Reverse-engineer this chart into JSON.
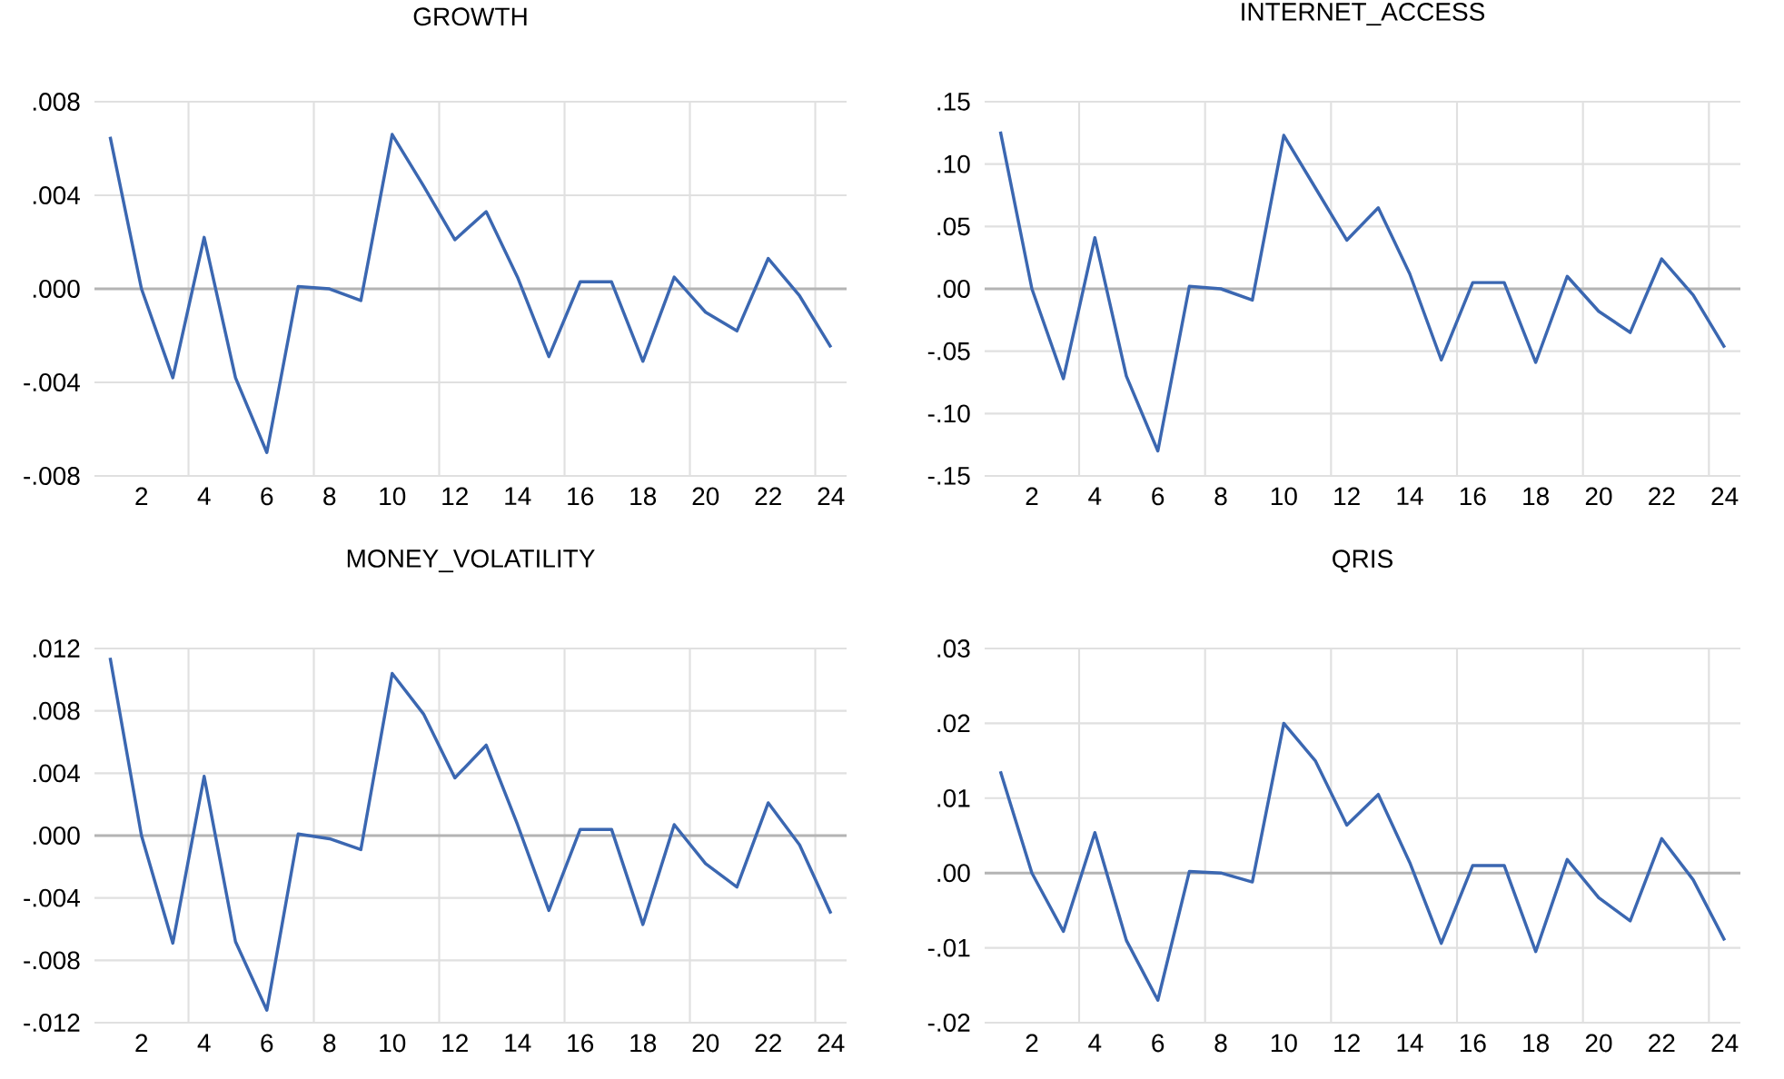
{
  "chart_data": [
    {
      "type": "line",
      "title": "GROWTH",
      "x": [
        1,
        2,
        3,
        4,
        5,
        6,
        7,
        8,
        9,
        10,
        11,
        12,
        13,
        14,
        15,
        16,
        17,
        18,
        19,
        20,
        21,
        22,
        23,
        24
      ],
      "series": [
        {
          "color": "#3b67b1",
          "values": [
            0.0065,
            0.0,
            -0.0038,
            0.0022,
            -0.0038,
            -0.007,
            0.0001,
            0.0,
            -0.0005,
            0.0066,
            0.0044,
            0.0021,
            0.0033,
            0.0005,
            -0.0029,
            0.0003,
            0.0003,
            -0.0031,
            0.0005,
            -0.001,
            -0.0018,
            0.0013,
            -0.0003,
            -0.0025
          ]
        }
      ],
      "xlim": [
        0.5,
        24.5
      ],
      "xticks": [
        2,
        4,
        6,
        8,
        10,
        12,
        14,
        16,
        18,
        20,
        22,
        24,
        {
          "value": 3.5,
          "label": null
        },
        {
          "value": 7.5,
          "label": null
        },
        {
          "value": 11.5,
          "label": null
        },
        {
          "value": 15.5,
          "label": null
        },
        {
          "value": 19.5,
          "label": null
        },
        {
          "value": 23.5,
          "label": null
        }
      ],
      "ylim": [
        -0.008,
        0.008
      ],
      "yticks": [
        {
          "value": -0.008,
          "label": "-.008"
        },
        {
          "value": -0.004,
          "label": "-.004"
        },
        {
          "value": 0,
          "label": ".000"
        },
        {
          "value": 0.004,
          "label": ".004"
        },
        {
          "value": 0.008,
          "label": ".008"
        }
      ],
      "grid": true,
      "ref_lines": [
        {
          "axis": "y",
          "value": 0,
          "color": "#b4b4b4"
        }
      ]
    },
    {
      "type": "line",
      "title": "INTERNET_ACCESS",
      "x": [
        1,
        2,
        3,
        4,
        5,
        6,
        7,
        8,
        9,
        10,
        11,
        12,
        13,
        14,
        15,
        16,
        17,
        18,
        19,
        20,
        21,
        22,
        23,
        24
      ],
      "series": [
        {
          "color": "#3b67b1",
          "values": [
            0.126,
            0.0,
            -0.072,
            0.041,
            -0.07,
            -0.13,
            0.002,
            0.0,
            -0.009,
            0.123,
            0.081,
            0.039,
            0.065,
            0.012,
            -0.057,
            0.005,
            0.005,
            -0.059,
            0.01,
            -0.018,
            -0.035,
            0.024,
            -0.005,
            -0.047
          ]
        }
      ],
      "xlim": [
        0.5,
        24.5
      ],
      "xticks": [
        2,
        4,
        6,
        8,
        10,
        12,
        14,
        16,
        18,
        20,
        22,
        24,
        {
          "value": 3.5,
          "label": null
        },
        {
          "value": 7.5,
          "label": null
        },
        {
          "value": 11.5,
          "label": null
        },
        {
          "value": 15.5,
          "label": null
        },
        {
          "value": 19.5,
          "label": null
        },
        {
          "value": 23.5,
          "label": null
        }
      ],
      "ylim": [
        -0.15,
        0.15
      ],
      "yticks": [
        {
          "value": -0.15,
          "label": "-.15"
        },
        {
          "value": -0.1,
          "label": "-.10"
        },
        {
          "value": -0.05,
          "label": "-.05"
        },
        {
          "value": 0,
          "label": ".00"
        },
        {
          "value": 0.05,
          "label": ".05"
        },
        {
          "value": 0.1,
          "label": ".10"
        },
        {
          "value": 0.15,
          "label": ".15"
        }
      ],
      "grid": true,
      "ref_lines": [
        {
          "axis": "y",
          "value": 0,
          "color": "#b4b4b4"
        }
      ]
    },
    {
      "type": "line",
      "title": "MONEY_VOLATILITY",
      "x": [
        1,
        2,
        3,
        4,
        5,
        6,
        7,
        8,
        9,
        10,
        11,
        12,
        13,
        14,
        15,
        16,
        17,
        18,
        19,
        20,
        21,
        22,
        23,
        24
      ],
      "series": [
        {
          "color": "#3b67b1",
          "values": [
            0.0114,
            0.0,
            -0.0069,
            0.0038,
            -0.0068,
            -0.0112,
            0.0001,
            -0.0002,
            -0.0009,
            0.0104,
            0.0078,
            0.0037,
            0.0058,
            0.0007,
            -0.0048,
            0.0004,
            0.0004,
            -0.0057,
            0.0007,
            -0.0018,
            -0.0033,
            0.0021,
            -0.0006,
            -0.005
          ]
        }
      ],
      "xlim": [
        0.5,
        24.5
      ],
      "xticks": [
        2,
        4,
        6,
        8,
        10,
        12,
        14,
        16,
        18,
        20,
        22,
        24,
        {
          "value": 3.5,
          "label": null
        },
        {
          "value": 7.5,
          "label": null
        },
        {
          "value": 11.5,
          "label": null
        },
        {
          "value": 15.5,
          "label": null
        },
        {
          "value": 19.5,
          "label": null
        },
        {
          "value": 23.5,
          "label": null
        }
      ],
      "ylim": [
        -0.012,
        0.012
      ],
      "yticks": [
        {
          "value": -0.012,
          "label": "-.012"
        },
        {
          "value": -0.008,
          "label": "-.008"
        },
        {
          "value": -0.004,
          "label": "-.004"
        },
        {
          "value": 0,
          "label": ".000"
        },
        {
          "value": 0.004,
          "label": ".004"
        },
        {
          "value": 0.008,
          "label": ".008"
        },
        {
          "value": 0.012,
          "label": ".012"
        }
      ],
      "grid": true,
      "ref_lines": [
        {
          "axis": "y",
          "value": 0,
          "color": "#b4b4b4"
        }
      ]
    },
    {
      "type": "line",
      "title": "QRIS",
      "x": [
        1,
        2,
        3,
        4,
        5,
        6,
        7,
        8,
        9,
        10,
        11,
        12,
        13,
        14,
        15,
        16,
        17,
        18,
        19,
        20,
        21,
        22,
        23,
        24
      ],
      "series": [
        {
          "color": "#3b67b1",
          "values": [
            0.0136,
            0.0,
            -0.0078,
            0.0054,
            -0.009,
            -0.017,
            0.0002,
            0.0,
            -0.0012,
            0.02,
            0.015,
            0.0064,
            0.0105,
            0.0014,
            -0.0094,
            0.001,
            0.001,
            -0.0105,
            0.0018,
            -0.0033,
            -0.0064,
            0.0046,
            -0.0009,
            -0.009
          ]
        }
      ],
      "xlim": [
        0.5,
        24.5
      ],
      "xticks": [
        2,
        4,
        6,
        8,
        10,
        12,
        14,
        16,
        18,
        20,
        22,
        24,
        {
          "value": 3.5,
          "label": null
        },
        {
          "value": 7.5,
          "label": null
        },
        {
          "value": 11.5,
          "label": null
        },
        {
          "value": 15.5,
          "label": null
        },
        {
          "value": 19.5,
          "label": null
        },
        {
          "value": 23.5,
          "label": null
        }
      ],
      "ylim": [
        -0.02,
        0.03
      ],
      "yticks": [
        {
          "value": -0.02,
          "label": "-.02"
        },
        {
          "value": -0.01,
          "label": "-.01"
        },
        {
          "value": 0,
          "label": ".00"
        },
        {
          "value": 0.01,
          "label": ".01"
        },
        {
          "value": 0.02,
          "label": ".02"
        },
        {
          "value": 0.03,
          "label": ".03"
        }
      ],
      "grid": true,
      "ref_lines": [
        {
          "axis": "y",
          "value": 0,
          "color": "#b4b4b4"
        }
      ]
    }
  ]
}
